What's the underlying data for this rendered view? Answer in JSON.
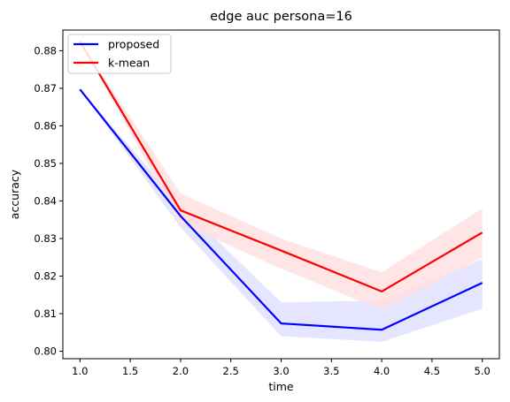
{
  "chart_data": {
    "type": "line",
    "title": "edge auc persona=16",
    "xlabel": "time",
    "ylabel": "accuracy",
    "xlim": [
      0.83,
      5.17
    ],
    "ylim": [
      0.798,
      0.8855
    ],
    "xticks": [
      1.0,
      1.5,
      2.0,
      2.5,
      3.0,
      3.5,
      4.0,
      4.5,
      5.0
    ],
    "xtick_labels": [
      "1.0",
      "1.5",
      "2.0",
      "2.5",
      "3.0",
      "3.5",
      "4.0",
      "4.5",
      "5.0"
    ],
    "yticks": [
      0.8,
      0.81,
      0.82,
      0.83,
      0.84,
      0.85,
      0.86,
      0.87,
      0.88
    ],
    "ytick_labels": [
      "0.80",
      "0.81",
      "0.82",
      "0.83",
      "0.84",
      "0.85",
      "0.86",
      "0.87",
      "0.88"
    ],
    "x": [
      1,
      2,
      3,
      4,
      5
    ],
    "grid": false,
    "legend_position": "top-left",
    "series": [
      {
        "name": "proposed",
        "color": "#0000ff",
        "band_color": "#e0e0ff",
        "values": [
          0.8697,
          0.836,
          0.8074,
          0.8057,
          0.8182
        ],
        "lower": [
          0.8697,
          0.833,
          0.804,
          0.8025,
          0.8113
        ],
        "upper": [
          0.8697,
          0.839,
          0.813,
          0.8135,
          0.8245
        ]
      },
      {
        "name": "k-mean",
        "color": "#ff0000",
        "band_color": "#ffe0e0",
        "values": [
          0.8825,
          0.8375,
          0.8268,
          0.8159,
          0.8316
        ],
        "lower": [
          0.8825,
          0.834,
          0.822,
          0.811,
          0.825
        ],
        "upper": [
          0.8825,
          0.842,
          0.83,
          0.821,
          0.838
        ]
      }
    ]
  }
}
